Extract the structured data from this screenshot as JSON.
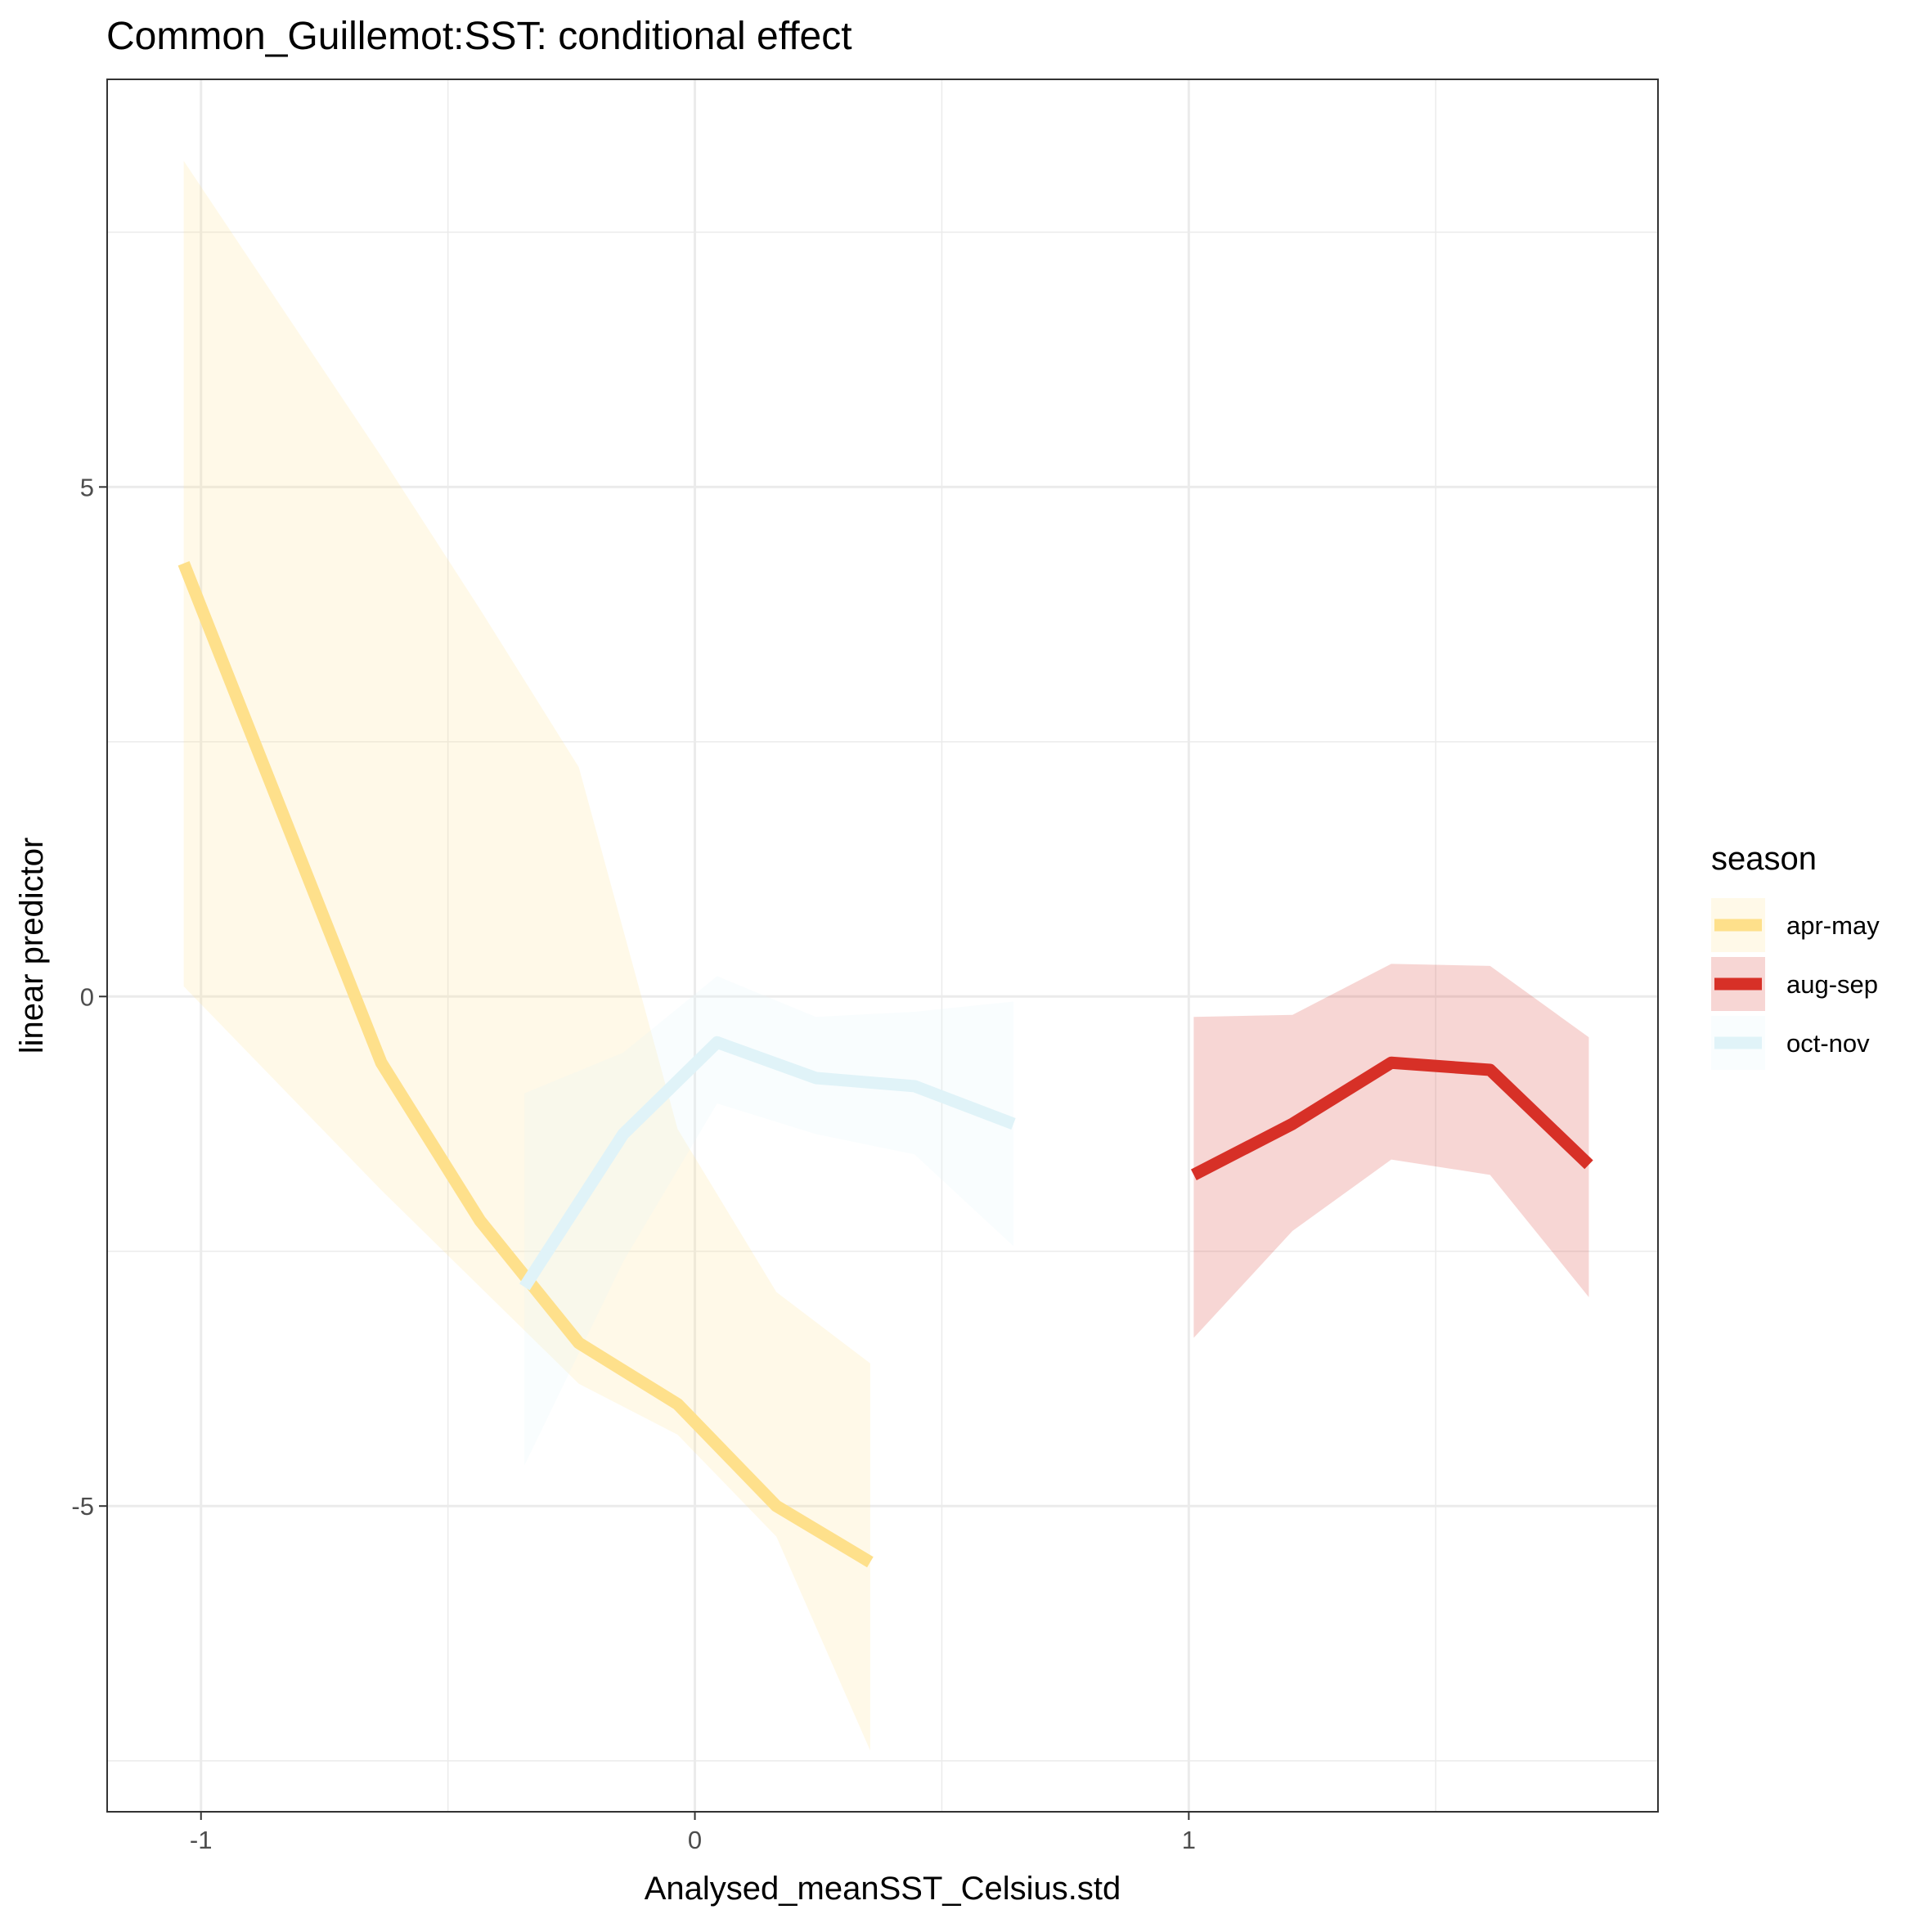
{
  "chart_data": {
    "type": "line",
    "title": "Common_Guillemot:SST: conditional effect",
    "xlabel": "Analysed_meanSST_Celsius.std",
    "ylabel": "linear predictor",
    "xlim": [
      -1.19,
      1.95
    ],
    "ylim": [
      -8.0,
      9.0
    ],
    "x_ticks": [
      -1,
      0,
      1
    ],
    "x_tick_labels": [
      "-1",
      "0",
      "1"
    ],
    "y_ticks": [
      -5,
      0,
      5
    ],
    "y_tick_labels": [
      "-5",
      "0",
      "5"
    ],
    "grid": true,
    "legend": {
      "title": "season",
      "position": "right"
    },
    "series": [
      {
        "name": "apr-may",
        "color": "#FEE08B",
        "ribbon_opacity": 0.2,
        "x": [
          -1.035,
          -0.835,
          -0.635,
          -0.435,
          -0.235,
          -0.035,
          0.165,
          0.355
        ],
        "y": [
          4.25,
          1.8,
          -0.65,
          -2.2,
          -3.4,
          -4.0,
          -5.0,
          -5.55
        ],
        "lower": [
          0.1,
          -0.9,
          -1.9,
          -2.85,
          -3.8,
          -4.3,
          -5.3,
          -7.4
        ],
        "upper": [
          8.2,
          6.75,
          5.3,
          3.8,
          2.25,
          -1.3,
          -2.9,
          -3.6
        ]
      },
      {
        "name": "aug-sep",
        "color": "#D73027",
        "ribbon_opacity": 0.2,
        "x": [
          1.01,
          1.21,
          1.41,
          1.61,
          1.81
        ],
        "y": [
          -1.75,
          -1.25,
          -0.65,
          -0.72,
          -1.65
        ],
        "lower": [
          -3.35,
          -2.3,
          -1.6,
          -1.75,
          -2.95
        ],
        "upper": [
          -0.2,
          -0.18,
          0.32,
          0.3,
          -0.4
        ]
      },
      {
        "name": "oct-nov",
        "color": "#E0F3F8",
        "ribbon_opacity": 0.2,
        "x": [
          -0.345,
          -0.145,
          0.045,
          0.245,
          0.445,
          0.645
        ],
        "y": [
          -2.85,
          -1.35,
          -0.45,
          -0.8,
          -0.88,
          -1.25
        ],
        "lower": [
          -4.6,
          -2.6,
          -1.05,
          -1.35,
          -1.55,
          -2.45
        ],
        "upper": [
          -0.95,
          -0.55,
          0.2,
          -0.2,
          -0.15,
          -0.05
        ]
      }
    ]
  }
}
